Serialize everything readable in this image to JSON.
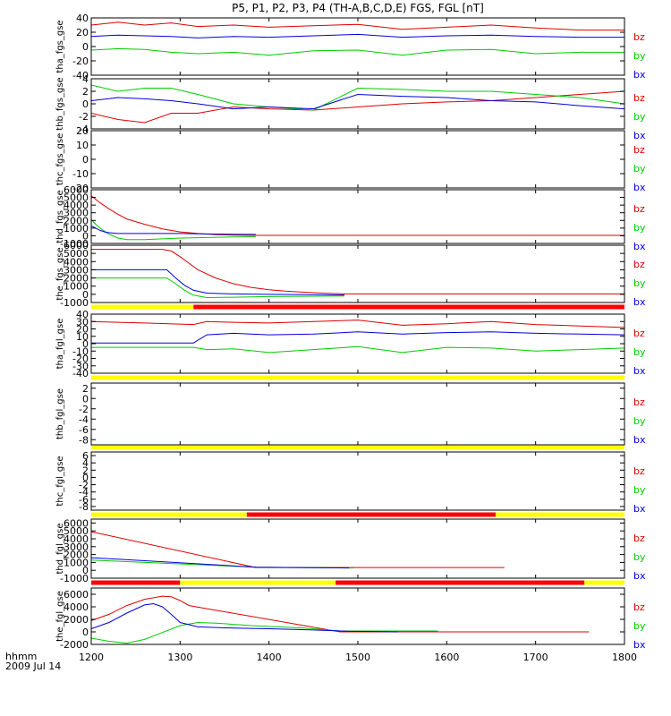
{
  "chart_data": {
    "type": "line",
    "title": "P5, P1, P2, P3, P4 (TH-A,B,C,D,E) FGS, FGL [nT]",
    "x_axis": {
      "range": [
        1200,
        1800
      ],
      "ticks": [
        "1200",
        "1300",
        "1400",
        "1500",
        "1600",
        "1700",
        "1800"
      ],
      "label_line1": "hhmm",
      "label_line2": "2009 Jul 14"
    },
    "legend": [
      "bz",
      "by",
      "bx"
    ],
    "colors": {
      "bz": "#dd0000",
      "by": "#00cc00",
      "bx": "#0000dd",
      "bar_yellow": "#ffff00",
      "bar_red": "#ff0000"
    },
    "panels": [
      {
        "name": "tha_fgs_gse",
        "ylim": [
          -40,
          40
        ],
        "yticks": [
          "40",
          "20",
          "0",
          "-20",
          "-40"
        ],
        "series": [
          {
            "name": "bz",
            "x": [
              1200,
              1230,
              1260,
              1290,
              1320,
              1360,
              1400,
              1450,
              1500,
              1550,
              1600,
              1650,
              1700,
              1750,
              1800
            ],
            "y": [
              30,
              34,
              30,
              33,
              28,
              30,
              27,
              29,
              31,
              24,
              27,
              30,
              26,
              23,
              23
            ]
          },
          {
            "name": "by",
            "x": [
              1200,
              1230,
              1260,
              1290,
              1320,
              1360,
              1400,
              1450,
              1500,
              1550,
              1600,
              1650,
              1700,
              1750,
              1800
            ],
            "y": [
              -5,
              -3,
              -4,
              -8,
              -10,
              -8,
              -12,
              -6,
              -5,
              -12,
              -5,
              -4,
              -10,
              -8,
              -8
            ]
          },
          {
            "name": "bx",
            "x": [
              1200,
              1230,
              1260,
              1290,
              1320,
              1360,
              1400,
              1450,
              1500,
              1550,
              1600,
              1650,
              1700,
              1750,
              1800
            ],
            "y": [
              14,
              16,
              15,
              14,
              12,
              14,
              13,
              15,
              17,
              13,
              15,
              16,
              14,
              13,
              13
            ]
          }
        ],
        "bars": []
      },
      {
        "name": "thb_fgs_gse",
        "ylim": [
          -4,
          4
        ],
        "yticks": [
          "4",
          "2",
          "0",
          "-2",
          "-4"
        ],
        "series": [
          {
            "name": "bz",
            "x": [
              1200,
              1230,
              1260,
              1290,
              1320,
              1360,
              1400,
              1450,
              1500,
              1550,
              1600,
              1650,
              1700,
              1750,
              1800
            ],
            "y": [
              -1.5,
              -2.5,
              -3,
              -1.5,
              -1.5,
              -0.5,
              -0.8,
              -1,
              -0.5,
              0,
              0.3,
              0.5,
              1,
              1.5,
              2
            ]
          },
          {
            "name": "by",
            "x": [
              1200,
              1230,
              1260,
              1290,
              1320,
              1360,
              1400,
              1450,
              1500,
              1550,
              1600,
              1650,
              1700,
              1750,
              1800
            ],
            "y": [
              3,
              2,
              2.5,
              2.5,
              1.5,
              0,
              -0.5,
              -1,
              2.5,
              2.3,
              2,
              2,
              1.5,
              1,
              0
            ]
          },
          {
            "name": "bx",
            "x": [
              1200,
              1230,
              1260,
              1290,
              1320,
              1360,
              1400,
              1450,
              1500,
              1550,
              1600,
              1650,
              1700,
              1750,
              1800
            ],
            "y": [
              0.5,
              1,
              0.8,
              0.5,
              0,
              -0.8,
              -0.5,
              -0.8,
              1.5,
              1.2,
              1,
              0.5,
              0.3,
              -0.3,
              -0.8
            ]
          }
        ],
        "bars": []
      },
      {
        "name": "thc_fgs_gse",
        "ylim": [
          -20,
          20
        ],
        "yticks": [
          "20",
          "10",
          "0",
          "-10",
          "-20"
        ],
        "series": [],
        "bars": []
      },
      {
        "name": "thd_fgs_gse",
        "ylim": [
          -1000,
          6000
        ],
        "yticks": [
          "6000",
          "5000",
          "4000",
          "3000",
          "2000",
          "1000",
          "0",
          "-1000"
        ],
        "series": [
          {
            "name": "bz",
            "x": [
              1200,
              1210,
              1220,
              1230,
              1240,
              1260,
              1280,
              1300,
              1320,
              1340,
              1360,
              1385,
              1800
            ],
            "y": [
              5200,
              4300,
              3500,
              2800,
              2200,
              1500,
              900,
              500,
              300,
              150,
              80,
              50,
              50
            ]
          },
          {
            "name": "by",
            "x": [
              1200,
              1205,
              1210,
              1215,
              1220,
              1230,
              1240,
              1260,
              1280,
              1300,
              1320,
              1340,
              1360,
              1385
            ],
            "y": [
              2100,
              1500,
              1000,
              600,
              200,
              -300,
              -500,
              -500,
              -400,
              -300,
              -250,
              -200,
              -150,
              -120
            ]
          },
          {
            "name": "bx",
            "x": [
              1200,
              1205,
              1210,
              1215,
              1220,
              1230,
              1240,
              1260,
              1280,
              1300,
              1320,
              1340,
              1360,
              1385
            ],
            "y": [
              1300,
              1000,
              700,
              500,
              400,
              300,
              300,
              300,
              300,
              300,
              250,
              220,
              200,
              180
            ]
          }
        ],
        "bars": []
      },
      {
        "name": "the_fgs_gse",
        "ylim": [
          -1000,
          6000
        ],
        "yticks": [
          "6000",
          "5000",
          "4000",
          "3000",
          "2000",
          "1000",
          "0",
          "-1000"
        ],
        "series": [
          {
            "name": "bz",
            "x": [
              1200,
              1280,
              1290,
              1300,
              1310,
              1320,
              1340,
              1360,
              1380,
              1400,
              1420,
              1440,
              1460,
              1485,
              1800
            ],
            "y": [
              5500,
              5500,
              5300,
              4600,
              3800,
              3000,
              2000,
              1300,
              850,
              550,
              380,
              260,
              150,
              50,
              50
            ]
          },
          {
            "name": "by",
            "x": [
              1200,
              1285,
              1295,
              1305,
              1315,
              1330,
              1360,
              1400,
              1450,
              1485
            ],
            "y": [
              2000,
              2000,
              1300,
              500,
              -100,
              -400,
              -350,
              -280,
              -230,
              -200
            ]
          },
          {
            "name": "bx",
            "x": [
              1200,
              1285,
              1295,
              1305,
              1315,
              1330,
              1360,
              1400,
              1450,
              1485
            ],
            "y": [
              3000,
              3000,
              2000,
              1100,
              500,
              150,
              50,
              0,
              -50,
              -80
            ]
          }
        ],
        "bars": [
          {
            "from": 1200,
            "to": 1315,
            "color": "bar_yellow"
          },
          {
            "from": 1315,
            "to": 1800,
            "color": "bar_red"
          }
        ]
      },
      {
        "name": "tha_fgl_gse",
        "ylim": [
          -40,
          40
        ],
        "yticks": [
          "40",
          "30",
          "20",
          "10",
          "0",
          "-10",
          "-20",
          "-30",
          "-40"
        ],
        "series": [
          {
            "name": "bz",
            "x": [
              1200,
              1260,
              1315,
              1330,
              1360,
              1400,
              1450,
              1500,
              1550,
              1600,
              1650,
              1700,
              1750,
              1800
            ],
            "y": [
              30,
              28,
              26,
              30,
              29,
              28,
              30,
              32,
              25,
              27,
              30,
              26,
              24,
              22
            ]
          },
          {
            "name": "by",
            "x": [
              1200,
              1260,
              1315,
              1330,
              1360,
              1400,
              1450,
              1500,
              1550,
              1600,
              1650,
              1700,
              1750,
              1800
            ],
            "y": [
              -5,
              -5,
              -5,
              -8,
              -7,
              -12,
              -8,
              -4,
              -12,
              -5,
              -6,
              -10,
              -8,
              -6
            ]
          },
          {
            "name": "bx",
            "x": [
              1200,
              1260,
              1315,
              1330,
              1360,
              1400,
              1450,
              1500,
              1550,
              1600,
              1650,
              1700,
              1750,
              1800
            ],
            "y": [
              1,
              1,
              1,
              12,
              14,
              12,
              13,
              16,
              13,
              15,
              16,
              14,
              13,
              12
            ]
          }
        ],
        "bars": [
          {
            "from": 1200,
            "to": 1800,
            "color": "bar_yellow"
          }
        ]
      },
      {
        "name": "thb_fgl_gse",
        "ylim": [
          -9,
          3
        ],
        "yticks": [
          "2",
          "0",
          "-2",
          "-4",
          "-6",
          "-8"
        ],
        "series": [],
        "bars": [
          {
            "from": 1200,
            "to": 1800,
            "color": "bar_yellow"
          }
        ]
      },
      {
        "name": "thc_fgl_gse",
        "ylim": [
          -9,
          7
        ],
        "yticks": [
          "6",
          "4",
          "2",
          "0",
          "-2",
          "-4",
          "-6",
          "-8"
        ],
        "series": [],
        "bars": [
          {
            "from": 1200,
            "to": 1375,
            "color": "bar_yellow"
          },
          {
            "from": 1375,
            "to": 1655,
            "color": "bar_red"
          },
          {
            "from": 1655,
            "to": 1800,
            "color": "bar_yellow"
          }
        ]
      },
      {
        "name": "thd_fgl_gse",
        "ylim": [
          -1000,
          6500
        ],
        "yticks": [
          "6000",
          "5000",
          "4000",
          "3000",
          "2000",
          "1000",
          "0",
          "-1000"
        ],
        "series": [
          {
            "name": "bz",
            "x": [
              1200,
              1385,
              1665
            ],
            "y": [
              4900,
              350,
              350
            ]
          },
          {
            "name": "by",
            "x": [
              1200,
              1385,
              1495
            ],
            "y": [
              1300,
              400,
              300
            ]
          },
          {
            "name": "bx",
            "x": [
              1200,
              1385,
              1490
            ],
            "y": [
              1600,
              400,
              300
            ]
          }
        ],
        "bars": [
          {
            "from": 1200,
            "to": 1300,
            "color": "bar_red"
          },
          {
            "from": 1300,
            "to": 1475,
            "color": "bar_yellow"
          },
          {
            "from": 1475,
            "to": 1755,
            "color": "bar_red"
          },
          {
            "from": 1755,
            "to": 1800,
            "color": "bar_yellow"
          }
        ]
      },
      {
        "name": "the_fgl_gse",
        "ylim": [
          -2000,
          7000
        ],
        "yticks": [
          "6000",
          "4000",
          "2000",
          "0",
          "-2000"
        ],
        "series": [
          {
            "name": "bz",
            "x": [
              1200,
              1220,
              1240,
              1260,
              1280,
              1290,
              1300,
              1310,
              1480,
              1760
            ],
            "y": [
              1800,
              2800,
              4200,
              5200,
              5700,
              5600,
              5000,
              4200,
              0,
              0
            ]
          },
          {
            "name": "by",
            "x": [
              1200,
              1220,
              1240,
              1260,
              1280,
              1300,
              1320,
              1340,
              1380,
              1440,
              1480,
              1590
            ],
            "y": [
              -1000,
              -1500,
              -1800,
              -1200,
              -100,
              1000,
              1500,
              1400,
              1000,
              600,
              150,
              150
            ]
          },
          {
            "name": "bx",
            "x": [
              1200,
              1220,
              1240,
              1260,
              1270,
              1280,
              1290,
              1300,
              1320,
              1360,
              1400,
              1450,
              1490,
              1545
            ],
            "y": [
              500,
              1500,
              3000,
              4300,
              4500,
              4000,
              2800,
              1500,
              800,
              600,
              500,
              300,
              100,
              0
            ]
          }
        ],
        "bars": []
      }
    ]
  }
}
